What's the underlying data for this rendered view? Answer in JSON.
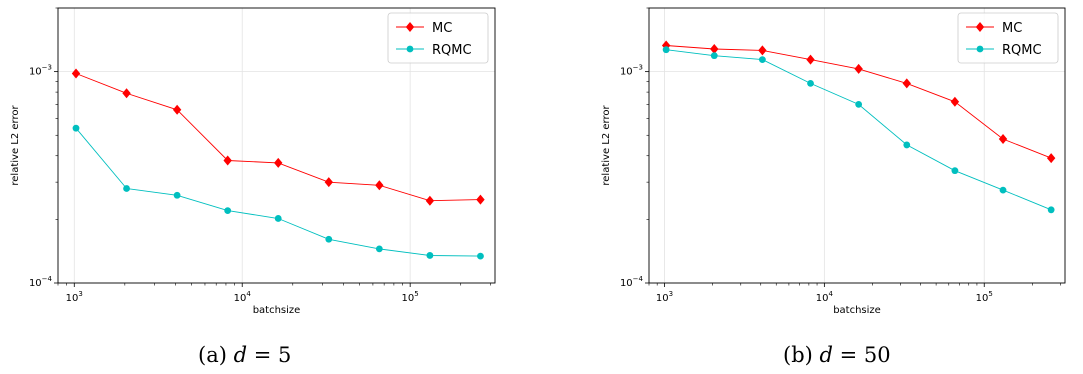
{
  "chart_data": [
    {
      "type": "line",
      "title": "",
      "xlabel": "batchsize",
      "ylabel": "relative L2 error",
      "xscale": "log",
      "yscale": "log",
      "xlim": [
        800,
        320000
      ],
      "ylim": [
        0.0001,
        0.002
      ],
      "xticks": [
        {
          "value": 1000,
          "base": "10",
          "exp": "3"
        },
        {
          "value": 10000,
          "base": "10",
          "exp": "4"
        },
        {
          "value": 100000,
          "base": "10",
          "exp": "5"
        }
      ],
      "yticks": [
        {
          "value": 0.0001,
          "base": "10",
          "exp": "−4"
        },
        {
          "value": 0.001,
          "base": "10",
          "exp": "−3"
        }
      ],
      "grid": true,
      "legend": "top-right",
      "x": [
        1024,
        2048,
        4096,
        8192,
        16384,
        32768,
        65536,
        131072,
        262144
      ],
      "series": [
        {
          "name": "MC",
          "color": "#ff0000",
          "marker": "diamond",
          "values": [
            0.00098,
            0.00079,
            0.00066,
            0.00038,
            0.00037,
            0.0003,
            0.00029,
            0.000245,
            0.000248
          ]
        },
        {
          "name": "RQMC",
          "color": "#00bfbf",
          "marker": "circle",
          "values": [
            0.00054,
            0.00028,
            0.00026,
            0.00022,
            0.000202,
            0.000161,
            0.000145,
            0.000135,
            0.000134
          ]
        }
      ],
      "caption": {
        "label": "(a)",
        "var": "d",
        "eq": " = 5"
      }
    },
    {
      "type": "line",
      "title": "",
      "xlabel": "batchsize",
      "ylabel": "relative L2 error",
      "xscale": "log",
      "yscale": "log",
      "xlim": [
        800,
        320000
      ],
      "ylim": [
        0.0001,
        0.002
      ],
      "xticks": [
        {
          "value": 1000,
          "base": "10",
          "exp": "3"
        },
        {
          "value": 10000,
          "base": "10",
          "exp": "4"
        },
        {
          "value": 100000,
          "base": "10",
          "exp": "5"
        }
      ],
      "yticks": [
        {
          "value": 0.0001,
          "base": "10",
          "exp": "−4"
        },
        {
          "value": 0.001,
          "base": "10",
          "exp": "−3"
        }
      ],
      "grid": true,
      "legend": "top-right",
      "x": [
        1024,
        2048,
        4096,
        8192,
        16384,
        32768,
        65536,
        131072,
        262144
      ],
      "series": [
        {
          "name": "MC",
          "color": "#ff0000",
          "marker": "diamond",
          "values": [
            0.00133,
            0.00128,
            0.00126,
            0.00114,
            0.00103,
            0.00088,
            0.00072,
            0.00048,
            0.00039
          ]
        },
        {
          "name": "RQMC",
          "color": "#00bfbf",
          "marker": "circle",
          "values": [
            0.00127,
            0.00119,
            0.00114,
            0.00088,
            0.0007,
            0.00045,
            0.00034,
            0.000275,
            0.000222
          ]
        }
      ],
      "caption": {
        "label": "(b)",
        "var": "d",
        "eq": " = 50"
      }
    }
  ]
}
